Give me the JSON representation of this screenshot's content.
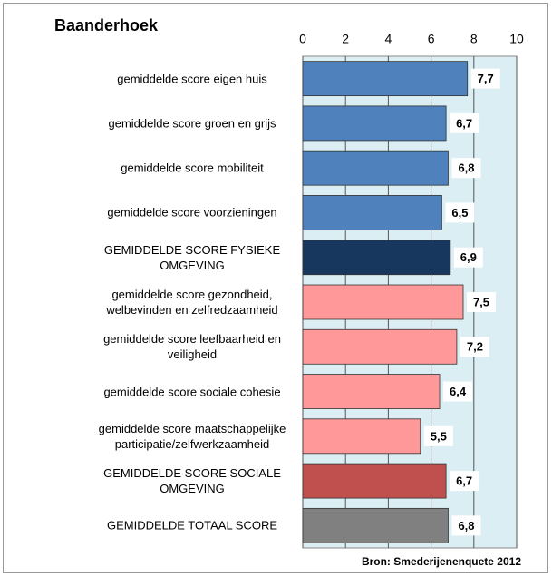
{
  "chart_data": {
    "type": "bar",
    "orientation": "horizontal",
    "title": "Baanderhoek",
    "categories": [
      "gemiddelde score eigen huis",
      "gemiddelde score groen en grijs",
      "gemiddelde score mobiliteit",
      "gemiddelde score voorzieningen",
      "GEMIDDELDE SCORE FYSIEKE\nOMGEVING",
      "gemiddelde score gezondheid,\nwelbevinden en zelfredzaamheid",
      "gemiddelde score leefbaarheid en\nveiligheid",
      "gemiddelde score sociale cohesie",
      "gemiddelde score maatschappelijke\nparticipatie/zelfwerkzaamheid",
      "GEMIDDELDE SCORE SOCIALE\nOMGEVING",
      "GEMIDDELDE TOTAAL SCORE"
    ],
    "values": [
      7.7,
      6.7,
      6.8,
      6.5,
      6.9,
      7.5,
      7.2,
      6.4,
      5.5,
      6.7,
      6.8
    ],
    "value_labels": [
      "7,7",
      "6,7",
      "6,8",
      "6,5",
      "6,9",
      "7,5",
      "7,2",
      "6,4",
      "5,5",
      "6,7",
      "6,8"
    ],
    "colors": [
      "#4f81bd",
      "#4f81bd",
      "#4f81bd",
      "#4f81bd",
      "#17375e",
      "#ff9999",
      "#ff9999",
      "#ff9999",
      "#ff9999",
      "#c0504d",
      "#808080"
    ],
    "xlim": [
      0,
      10
    ],
    "xticks": [
      0,
      2,
      4,
      6,
      8,
      10
    ],
    "grid": true,
    "source": "Bron: Smederijenenquete 2012"
  }
}
